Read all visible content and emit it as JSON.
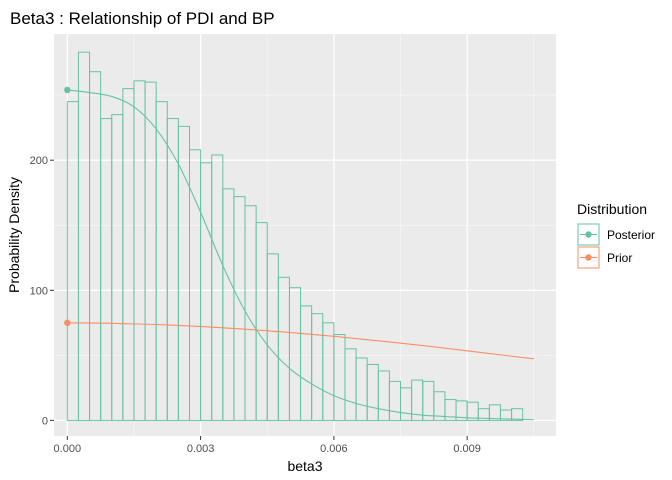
{
  "chart_data": {
    "type": "histogram",
    "title": "Beta3 : Relationship of PDI and BP",
    "xlabel": "beta3",
    "ylabel": "Probability Density",
    "xlim": [
      -0.0003,
      0.011
    ],
    "ylim": [
      -12,
      297
    ],
    "x_ticks": [
      0.0,
      0.003,
      0.006,
      0.009
    ],
    "x_tick_labels": [
      "0.000",
      "0.003",
      "0.006",
      "0.009"
    ],
    "y_ticks": [
      0,
      100,
      200
    ],
    "y_tick_labels": [
      "0",
      "100",
      "200"
    ],
    "grid": true,
    "legend": {
      "title": "Distribution",
      "position": "right",
      "entries": [
        "Posterior",
        "Prior"
      ]
    },
    "colors": {
      "posterior": "#66c2a5",
      "prior": "#fc8d62",
      "panel": "#ebebeb",
      "grid_major": "#ffffff",
      "grid_minor": "#f5f5f5"
    },
    "histogram": {
      "series": "Posterior",
      "bin_width": 0.00025,
      "bin_start": 0.0,
      "values": [
        245,
        283,
        268,
        232,
        235,
        255,
        261,
        260,
        245,
        232,
        226,
        208,
        198,
        204,
        178,
        172,
        165,
        152,
        128,
        110,
        102,
        88,
        82,
        75,
        66,
        55,
        48,
        43,
        38,
        30,
        25,
        31,
        30,
        22,
        16,
        15,
        14,
        9,
        12,
        8,
        9,
        7,
        6,
        5,
        2,
        4,
        3,
        2,
        1,
        1,
        1,
        1,
        0,
        1,
        0,
        0,
        0,
        0,
        0,
        0,
        0,
        0,
        0,
        0,
        0,
        0,
        0,
        0,
        0,
        0
      ]
    },
    "series": [
      {
        "name": "Posterior",
        "x": [
          0.0,
          0.0005,
          0.001,
          0.0015,
          0.002,
          0.0025,
          0.003,
          0.0035,
          0.004,
          0.0045,
          0.005,
          0.0055,
          0.006,
          0.0065,
          0.007,
          0.0075,
          0.008,
          0.0085,
          0.009,
          0.0095,
          0.01,
          0.0105
        ],
        "y": [
          254,
          252,
          249,
          241,
          224,
          197,
          160,
          119,
          84,
          58,
          40,
          28,
          19,
          13,
          9,
          6,
          4,
          3,
          2,
          1.5,
          1,
          0.5
        ]
      },
      {
        "name": "Prior",
        "x": [
          0.0,
          0.001,
          0.002,
          0.003,
          0.004,
          0.005,
          0.006,
          0.007,
          0.008,
          0.009,
          0.0095,
          0.0105
        ],
        "y": [
          75,
          74.6,
          73.7,
          72.2,
          70.1,
          67.6,
          64.6,
          61.2,
          57.5,
          53.5,
          51.4,
          47.3
        ]
      }
    ],
    "points": [
      {
        "name": "Posterior",
        "x": 0.0,
        "y": 254
      },
      {
        "name": "Prior",
        "x": 0.0,
        "y": 75
      }
    ]
  }
}
